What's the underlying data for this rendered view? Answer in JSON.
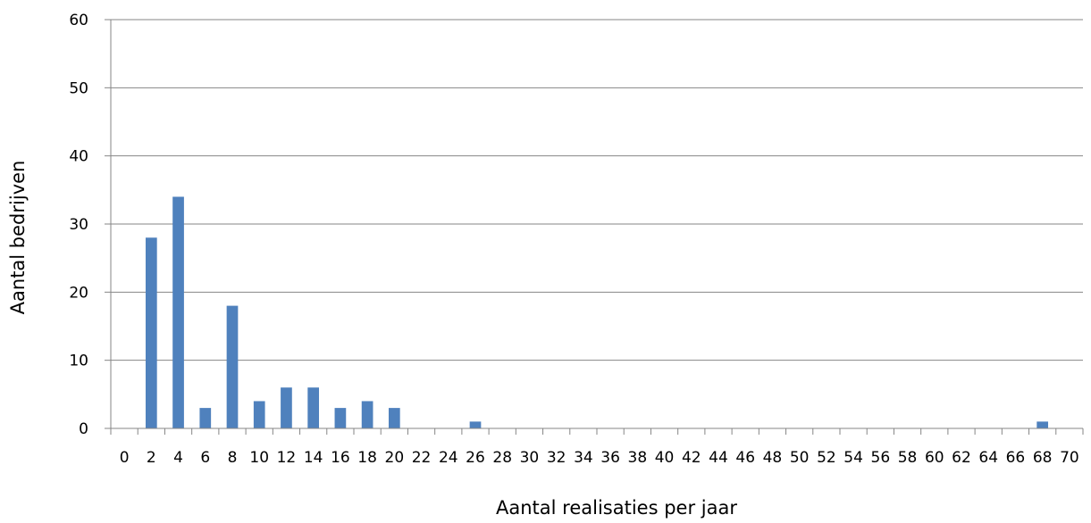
{
  "chart_data": {
    "type": "bar",
    "title": "",
    "xlabel": "Aantal realisaties per jaar",
    "ylabel": "Aantal bedrijven",
    "ylim": [
      0,
      60
    ],
    "yticks": [
      "0",
      "10",
      "20",
      "30",
      "40",
      "50",
      "60"
    ],
    "categories": [
      "0",
      "2",
      "4",
      "6",
      "8",
      "10",
      "12",
      "14",
      "16",
      "18",
      "20",
      "22",
      "24",
      "26",
      "28",
      "30",
      "32",
      "34",
      "36",
      "38",
      "40",
      "42",
      "44",
      "46",
      "48",
      "50",
      "52",
      "54",
      "56",
      "58",
      "60",
      "62",
      "64",
      "66",
      "68",
      "70"
    ],
    "values": [
      0,
      28,
      34,
      3,
      18,
      4,
      6,
      6,
      3,
      4,
      3,
      0,
      0,
      1,
      0,
      0,
      0,
      0,
      0,
      0,
      0,
      0,
      0,
      0,
      0,
      0,
      0,
      0,
      0,
      0,
      0,
      0,
      0,
      0,
      1,
      0
    ],
    "grid": true,
    "bar_color": "#4f81bd"
  }
}
